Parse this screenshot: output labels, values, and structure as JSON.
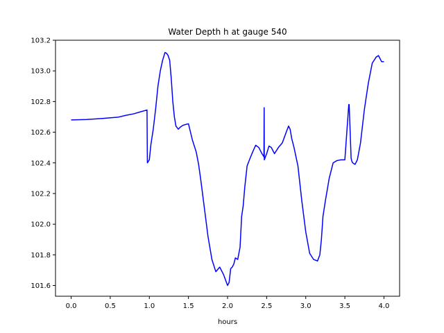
{
  "chart_data": {
    "type": "line",
    "title": "Water Depth h at gauge 540",
    "xlabel": "hours",
    "ylabel": "",
    "xlim": [
      -0.2,
      4.2
    ],
    "ylim": [
      101.53,
      103.2
    ],
    "xticks": [
      0.0,
      0.5,
      1.0,
      1.5,
      2.0,
      2.5,
      3.0,
      3.5,
      4.0
    ],
    "xtick_labels": [
      "0.0",
      "0.5",
      "1.0",
      "1.5",
      "2.0",
      "2.5",
      "3.0",
      "3.5",
      "4.0"
    ],
    "yticks": [
      101.6,
      101.8,
      102.0,
      102.2,
      102.4,
      102.6,
      102.8,
      103.0,
      103.2
    ],
    "ytick_labels": [
      "101.6",
      "101.8",
      "102.0",
      "102.2",
      "102.4",
      "102.6",
      "102.8",
      "103.0",
      "103.2"
    ],
    "grid": false,
    "series": [
      {
        "color": "#0000ff",
        "x": [
          0.0,
          0.2,
          0.4,
          0.6,
          0.7,
          0.8,
          0.9,
          0.97,
          0.975,
          1.0,
          1.02,
          1.05,
          1.08,
          1.11,
          1.14,
          1.17,
          1.2,
          1.22,
          1.24,
          1.26,
          1.28,
          1.3,
          1.32,
          1.34,
          1.37,
          1.4,
          1.43,
          1.46,
          1.5,
          1.55,
          1.6,
          1.63,
          1.66,
          1.7,
          1.75,
          1.8,
          1.85,
          1.9,
          1.95,
          2.0,
          2.02,
          2.04,
          2.06,
          2.08,
          2.1,
          2.13,
          2.16,
          2.18,
          2.2,
          2.22,
          2.25,
          2.28,
          2.32,
          2.36,
          2.4,
          2.44,
          2.465,
          2.468,
          2.47,
          2.5,
          2.53,
          2.56,
          2.6,
          2.65,
          2.7,
          2.75,
          2.78,
          2.8,
          2.82,
          2.85,
          2.9,
          2.95,
          3.0,
          3.05,
          3.1,
          3.15,
          3.18,
          3.2,
          3.22,
          3.25,
          3.3,
          3.35,
          3.4,
          3.45,
          3.5,
          3.55,
          3.555,
          3.58,
          3.59,
          3.6,
          3.63,
          3.66,
          3.7,
          3.75,
          3.8,
          3.85,
          3.9,
          3.93,
          3.95,
          3.97,
          4.0
        ],
        "y": [
          102.68,
          102.683,
          102.69,
          102.698,
          102.71,
          102.72,
          102.735,
          102.745,
          102.4,
          102.42,
          102.52,
          102.62,
          102.75,
          102.9,
          103.0,
          103.07,
          103.12,
          103.115,
          103.1,
          103.07,
          102.95,
          102.8,
          102.7,
          102.64,
          102.62,
          102.635,
          102.645,
          102.65,
          102.655,
          102.55,
          102.47,
          102.39,
          102.28,
          102.12,
          101.92,
          101.77,
          101.69,
          101.72,
          101.67,
          101.6,
          101.62,
          101.71,
          101.72,
          101.74,
          101.78,
          101.77,
          101.85,
          102.05,
          102.12,
          102.24,
          102.38,
          102.42,
          102.47,
          102.515,
          102.5,
          102.46,
          102.44,
          102.76,
          102.42,
          102.46,
          102.51,
          102.5,
          102.46,
          102.5,
          102.53,
          102.6,
          102.64,
          102.62,
          102.56,
          102.5,
          102.38,
          102.15,
          101.95,
          101.81,
          101.77,
          101.76,
          101.8,
          101.9,
          102.05,
          102.15,
          102.3,
          102.4,
          102.415,
          102.42,
          102.42,
          102.78,
          102.78,
          102.43,
          102.41,
          102.4,
          102.39,
          102.42,
          102.53,
          102.75,
          102.92,
          103.05,
          103.09,
          103.1,
          103.08,
          103.06,
          103.06
        ]
      }
    ]
  }
}
